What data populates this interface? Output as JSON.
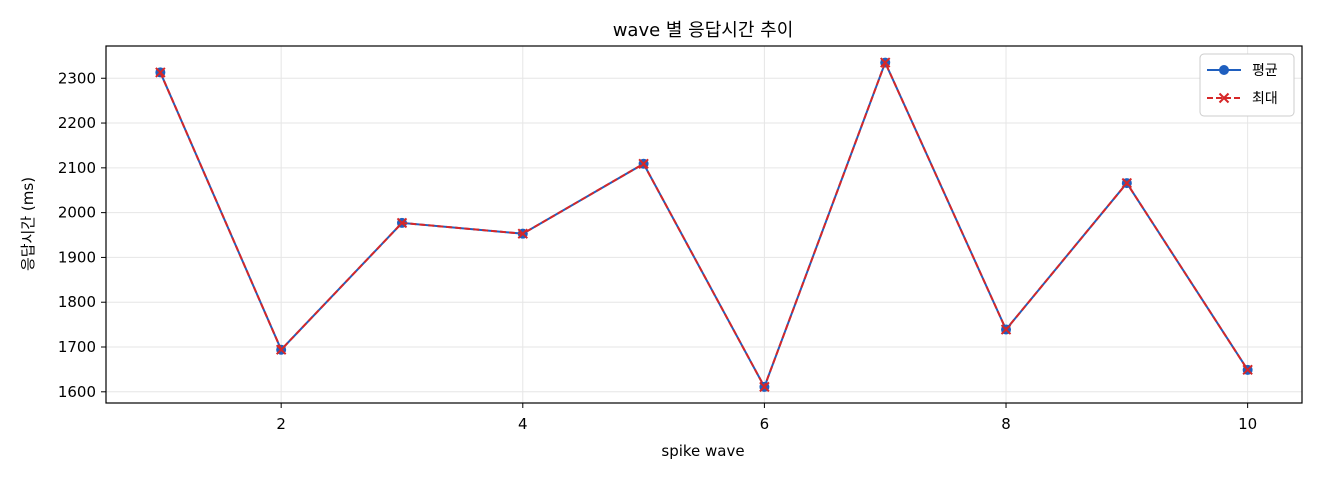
{
  "chart_data": {
    "type": "line",
    "title": "wave 별 응답시간 추이",
    "xlabel": "spike wave",
    "ylabel": "응답시간 (ms)",
    "x": [
      1,
      2,
      3,
      4,
      5,
      6,
      7,
      8,
      9,
      10
    ],
    "xlim": [
      0.55,
      10.45
    ],
    "ylim": [
      1575,
      2372
    ],
    "xticks": [
      2,
      4,
      6,
      8,
      10
    ],
    "yticks": [
      1600,
      1700,
      1800,
      1900,
      2000,
      2100,
      2200,
      2300
    ],
    "grid": true,
    "legend_position": "top-right",
    "series": [
      {
        "name": "평균",
        "values": [
          2313,
          1694,
          1977,
          1953,
          2109,
          1611,
          2335,
          1739,
          2066,
          1649
        ],
        "color": "#1f5fbf",
        "marker": "circle",
        "line_style": "solid"
      },
      {
        "name": "최대",
        "values": [
          2313,
          1694,
          1977,
          1953,
          2109,
          1611,
          2335,
          1739,
          2066,
          1649
        ],
        "color": "#d62728",
        "marker": "x",
        "line_style": "dashed"
      }
    ]
  }
}
